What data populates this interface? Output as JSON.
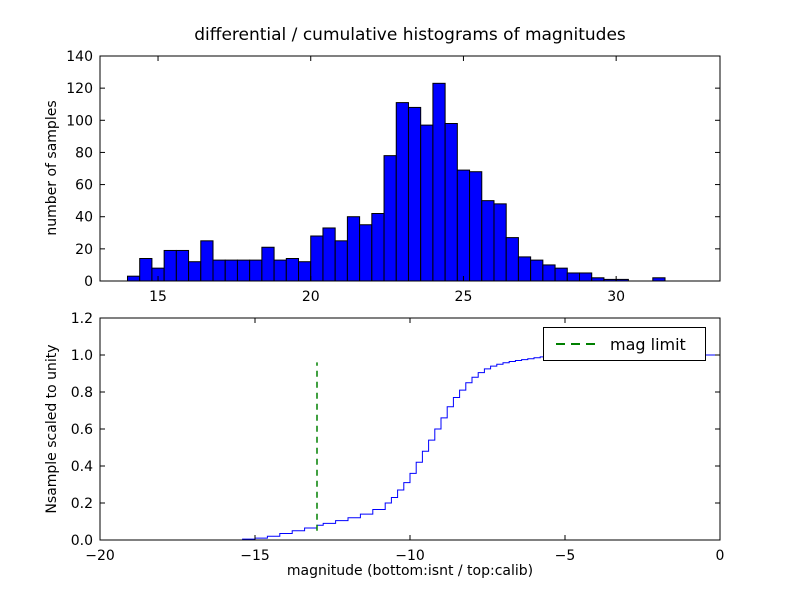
{
  "figure": {
    "title": "differential / cumulative histograms of magnitudes",
    "background_color": "#ffffff"
  },
  "chart_data": [
    {
      "type": "bar",
      "subplot": "top",
      "title": "differential / cumulative histograms of magnitudes",
      "ylabel": "number of samples",
      "bar_color": "#0000ff",
      "bar_edge_color": "#000000",
      "bin_start": 14.0,
      "bin_width": 0.4,
      "values": [
        3,
        14,
        8,
        19,
        19,
        12,
        25,
        13,
        13,
        13,
        13,
        21,
        13,
        14,
        12,
        28,
        33,
        25,
        40,
        35,
        42,
        78,
        111,
        108,
        97,
        123,
        98,
        69,
        68,
        50,
        48,
        27,
        15,
        13,
        10,
        8,
        5,
        5,
        2,
        1,
        1,
        0,
        0,
        2,
        0
      ],
      "xlim": [
        13.1,
        33.4
      ],
      "ylim": [
        0,
        140
      ],
      "xticks": [
        15,
        20,
        25,
        30
      ],
      "yticks": [
        0,
        20,
        40,
        60,
        80,
        100,
        120,
        140
      ],
      "grid": false
    },
    {
      "type": "line",
      "subplot": "bottom",
      "style": "step",
      "ylabel": "Nsample scaled to unity",
      "xlabel": "magnitude (bottom:isnt / top:calib)",
      "line_color": "#0000ff",
      "points": [
        [
          -16.0,
          0
        ],
        [
          -15.4,
          0.005
        ],
        [
          -15.0,
          0.01
        ],
        [
          -14.6,
          0.02
        ],
        [
          -14.2,
          0.035
        ],
        [
          -13.8,
          0.05
        ],
        [
          -13.4,
          0.065
        ],
        [
          -13.0,
          0.08
        ],
        [
          -12.8,
          0.09
        ],
        [
          -12.4,
          0.105
        ],
        [
          -12.0,
          0.12
        ],
        [
          -11.6,
          0.14
        ],
        [
          -11.2,
          0.165
        ],
        [
          -10.8,
          0.2
        ],
        [
          -10.6,
          0.23
        ],
        [
          -10.4,
          0.27
        ],
        [
          -10.2,
          0.31
        ],
        [
          -10.0,
          0.36
        ],
        [
          -9.8,
          0.42
        ],
        [
          -9.6,
          0.48
        ],
        [
          -9.4,
          0.54
        ],
        [
          -9.2,
          0.6
        ],
        [
          -9.0,
          0.66
        ],
        [
          -8.8,
          0.72
        ],
        [
          -8.6,
          0.77
        ],
        [
          -8.4,
          0.81
        ],
        [
          -8.2,
          0.85
        ],
        [
          -8.0,
          0.88
        ],
        [
          -7.8,
          0.905
        ],
        [
          -7.6,
          0.925
        ],
        [
          -7.4,
          0.94
        ],
        [
          -7.2,
          0.95
        ],
        [
          -7.0,
          0.958
        ],
        [
          -6.8,
          0.965
        ],
        [
          -6.6,
          0.97
        ],
        [
          -6.4,
          0.975
        ],
        [
          -6.2,
          0.98
        ],
        [
          -6.0,
          0.985
        ],
        [
          -5.8,
          0.99
        ],
        [
          -5.4,
          0.995
        ],
        [
          -5.0,
          0.998
        ],
        [
          -4.6,
          1.0
        ],
        [
          0,
          1.0
        ]
      ],
      "xlim": [
        -20,
        0
      ],
      "ylim": [
        0,
        1.2
      ],
      "xticks": [
        -20,
        -15,
        -10,
        -5,
        0
      ],
      "yticks": [
        0,
        0.2,
        0.4,
        0.6,
        0.8,
        1.0,
        1.2
      ],
      "grid": false,
      "legend_label": "mag limit",
      "legend_position": "upper right",
      "mag_limit": {
        "x": -13,
        "y_from": 0.05,
        "y_to": 0.96,
        "color": "#008000",
        "linestyle": "dashed"
      }
    }
  ]
}
